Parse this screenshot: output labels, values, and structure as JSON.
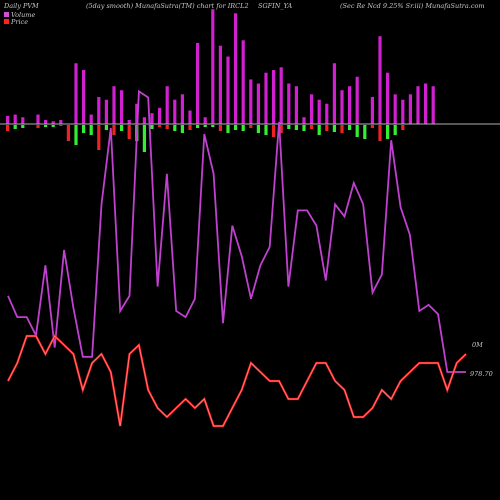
{
  "header": {
    "left": "Daily PVM",
    "center_left": "(5day smooth) MunafaSutra(TM) chart for IRCL2",
    "center": "SGFIN_YA",
    "right": "(Sec Re  Ncd 9.25% Sr.iii) MunafaSutra.com"
  },
  "legend": {
    "volume_label": "Volume",
    "price_label": "Price",
    "volume_color": "#d050d0",
    "price_color": "#ff2020"
  },
  "axis_labels": {
    "volume": "0M",
    "price": "978.70"
  },
  "chart_data": {
    "type": "bar",
    "title": "(5day smooth) MunafaSutra(TM) chart for IRCL2 SGFIN_YA",
    "colors": {
      "volume_bar": "#d020d0",
      "up_bar": "#33ee33",
      "down_bar": "#ee2222",
      "volume_line": "#c040d0",
      "price_line": "#ff2020",
      "baseline": "#b0b0b0"
    },
    "volume_bars": [
      6,
      7,
      5,
      0,
      7,
      3,
      2,
      3,
      0,
      45,
      40,
      7,
      20,
      18,
      28,
      25,
      3,
      15,
      5,
      8,
      12,
      28,
      18,
      22,
      10,
      60,
      5,
      85,
      58,
      50,
      82,
      62,
      33,
      30,
      38,
      40,
      42,
      30,
      28,
      5,
      22,
      18,
      15,
      45,
      25,
      28,
      35,
      0,
      20,
      65,
      38,
      22,
      18,
      22,
      28,
      30,
      28,
      0,
      0,
      0
    ],
    "flow_bars": [
      -6,
      -4,
      -3,
      0,
      -3,
      -2,
      -2,
      -1,
      -16,
      -20,
      -8,
      -10,
      -25,
      -5,
      -10,
      -6,
      -14,
      -16,
      -27,
      -4,
      -2,
      -4,
      -6,
      -8,
      -5,
      -3,
      -2,
      -2,
      -6,
      -8,
      -5,
      -6,
      -3,
      -8,
      -10,
      -12,
      -8,
      -4,
      -5,
      -6,
      -4,
      -10,
      -6,
      -7,
      -8,
      -5,
      -12,
      -14,
      -3,
      -16,
      -14,
      -10,
      -5,
      0,
      0,
      0,
      0,
      0,
      0,
      0
    ],
    "volume_line": [
      25,
      18,
      18,
      12,
      35,
      8,
      40,
      21,
      5,
      5,
      55,
      80,
      20,
      25,
      92,
      90,
      28,
      65,
      20,
      18,
      24,
      78,
      65,
      16,
      48,
      38,
      24,
      35,
      41,
      82,
      28,
      53,
      53,
      48,
      30,
      55,
      51,
      62,
      55,
      26,
      32,
      76,
      54,
      45,
      20,
      22,
      19,
      0,
      0,
      0
    ],
    "price": [
      978.4,
      978.6,
      978.9,
      978.9,
      978.7,
      978.9,
      978.8,
      978.7,
      978.3,
      978.6,
      978.7,
      978.5,
      977.9,
      978.7,
      978.8,
      978.3,
      978.1,
      978.0,
      978.1,
      978.2,
      978.1,
      978.2,
      977.9,
      977.9,
      978.1,
      978.3,
      978.6,
      978.5,
      978.4,
      978.4,
      978.2,
      978.2,
      978.4,
      978.6,
      978.6,
      978.4,
      978.3,
      978.0,
      978.0,
      978.1,
      978.3,
      978.2,
      978.4,
      978.5,
      978.6,
      978.6,
      978.6,
      978.3,
      978.6,
      978.7
    ],
    "ylim_price": [
      977.5,
      979.5
    ],
    "grid": false,
    "legend_position": "top-left"
  }
}
